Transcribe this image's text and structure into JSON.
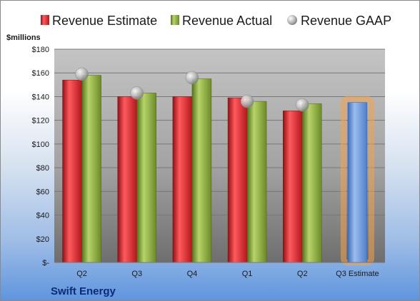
{
  "chart_data": {
    "type": "bar",
    "title": "",
    "company": "Swift Energy",
    "units_label": "$millions",
    "categories": [
      "Q2",
      "Q3",
      "Q4",
      "Q1",
      "Q2",
      "Q3 Estimate"
    ],
    "series": [
      {
        "name": "Revenue Estimate",
        "kind": "bar",
        "color": "#e0262d",
        "values": [
          154,
          140,
          140,
          139,
          128,
          null
        ]
      },
      {
        "name": "Revenue Actual",
        "kind": "bar",
        "color": "#86a63a",
        "values": [
          158,
          143,
          155,
          136,
          134,
          null
        ]
      },
      {
        "name": "Revenue GAAP",
        "kind": "marker",
        "color": "#b3b3b3",
        "values": [
          159,
          143,
          156,
          136,
          133,
          null
        ]
      },
      {
        "name": "Q3 Estimate",
        "kind": "bar",
        "color": "#5f8fd6",
        "highlight": "#f5a34a",
        "values": [
          null,
          null,
          null,
          null,
          null,
          135
        ]
      }
    ],
    "ylim": [
      0,
      180
    ],
    "yticks": [
      0,
      20,
      40,
      60,
      80,
      100,
      120,
      140,
      160,
      180
    ],
    "ytick_labels": [
      "$-",
      "$20",
      "$40",
      "$60",
      "$80",
      "$100",
      "$120",
      "$140",
      "$160",
      "$180"
    ],
    "grid": true,
    "legend_position": "top"
  }
}
